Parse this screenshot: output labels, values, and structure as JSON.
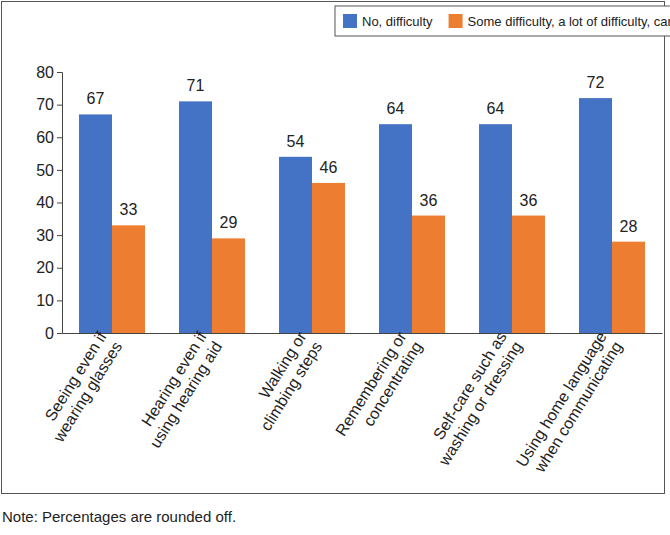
{
  "chart_data": {
    "type": "bar",
    "categories": [
      "Seeing even if wearing glasses",
      "Hearing even if using hearing aid",
      "Walking or climbing steps",
      "Remembering or concentrating",
      "Self-care such as washing or dressing",
      "Using home language when communicating"
    ],
    "series": [
      {
        "name": "No, difficulty",
        "color": "#4472c4",
        "values": [
          67,
          71,
          54,
          64,
          64,
          72
        ]
      },
      {
        "name": "Some difficulty, a lot of difficulty, cannot do",
        "color": "#ed7d31",
        "values": [
          33,
          29,
          46,
          36,
          36,
          28
        ]
      }
    ],
    "ylim": [
      0,
      80
    ],
    "yticks": [
      0,
      10,
      20,
      30,
      40,
      50,
      60,
      70,
      80
    ],
    "grid": false,
    "legend": "top-right",
    "data_labels": true,
    "note": "Note: Percentages are rounded off."
  }
}
